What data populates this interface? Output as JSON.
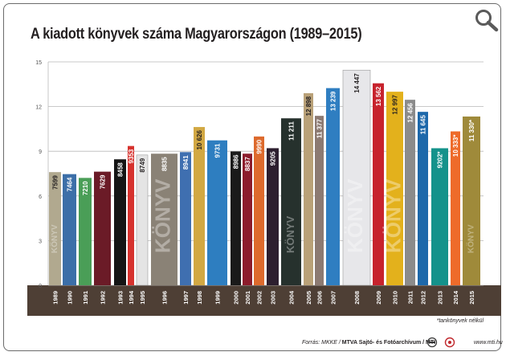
{
  "title": "A kiadott könyvek száma Magyarországon (1989–2015)",
  "footnote": "*tankönyvek nélkül",
  "source": {
    "prefix": "Forrás: MKKE / ",
    "bold": "MTVA Sajtó- és Fotóarchívum / MTI",
    "suffix": ""
  },
  "site": "www.mti.hu",
  "icons": {
    "zoom": "magnifier-icon",
    "logo1": "mtva-logo",
    "logo2": "mti-logo"
  },
  "colors": {
    "axis_band": "#4e3f35",
    "grid": "#b9b9b9",
    "text_dark": "#231f20"
  },
  "chart_data": {
    "type": "bar",
    "title": "A kiadott könyvek száma Magyarországon (1989–2015)",
    "ylim": [
      0,
      15
    ],
    "yticks": [
      "0",
      "3",
      "6",
      "9",
      "12",
      "15"
    ],
    "grid": true,
    "categories": [
      "1989",
      "1990",
      "1991",
      "1992",
      "1993",
      "1994",
      "1995",
      "1996",
      "1997",
      "1998",
      "1999",
      "2000",
      "2001",
      "2002",
      "2003",
      "2004",
      "2005",
      "2006",
      "2007",
      "2008",
      "2009",
      "2010",
      "2011",
      "2012",
      "2013",
      "2014",
      "2015"
    ],
    "values": [
      7.599,
      7.464,
      7.21,
      7.629,
      8.458,
      9.353,
      8.749,
      8.835,
      8.941,
      10.626,
      9.731,
      8.986,
      8.837,
      9.99,
      9.205,
      11.211,
      12.898,
      11.377,
      13.239,
      14.447,
      13.562,
      12.997,
      12.456,
      11.645,
      9.202,
      10.333,
      11.33
    ],
    "labels": [
      "7599",
      "7464",
      "7210",
      "7629",
      "8458",
      "9353",
      "8749",
      "8835",
      "8941",
      "10 626",
      "9731",
      "8986",
      "8837",
      "9990",
      "9205",
      "11 211",
      "12 898",
      "11 377",
      "13 239",
      "14 447",
      "13 562",
      "12 997",
      "12 456",
      "11 645",
      "9202*",
      "10 333*",
      "11 330*"
    ],
    "bar_colors": [
      "#b1a98f",
      "#3c6fa8",
      "#4a9e57",
      "#6b1b27",
      "#151515",
      "#d6322e",
      "#e4e4e4",
      "#8a8276",
      "#3f6fb0",
      "#d2a843",
      "#2e7ec0",
      "#1a1a1a",
      "#8c1c2c",
      "#dd6a2d",
      "#2d1f2f",
      "#26312d",
      "#b9a178",
      "#8c7a72",
      "#2f7ec1",
      "#e7e7ea",
      "#c7232d",
      "#e3b11c",
      "#8b8b8b",
      "#1d68aa",
      "#14928b",
      "#ee6b2a",
      "#9f8a3a"
    ],
    "book_word": "KÖNYV"
  }
}
